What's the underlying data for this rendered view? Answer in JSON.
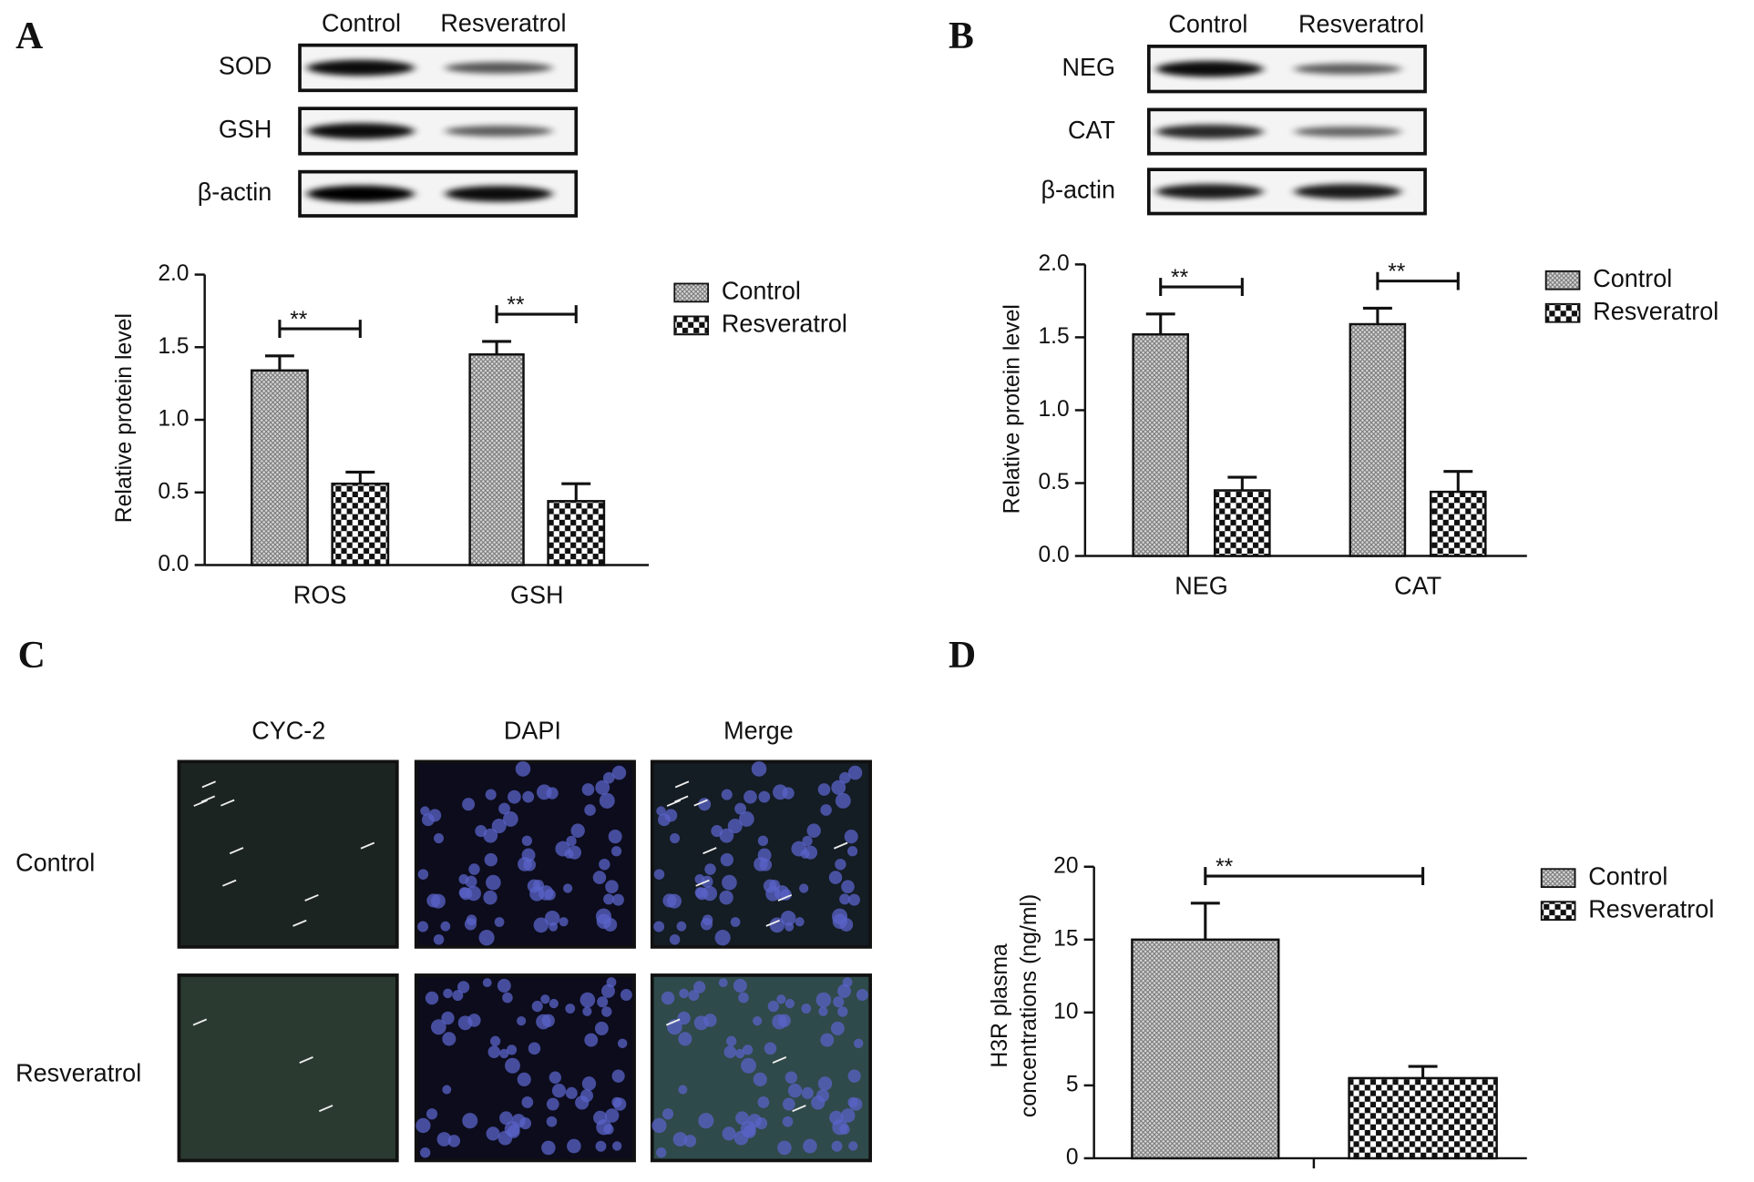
{
  "panel_labels": [
    "A",
    "B",
    "C",
    "D"
  ],
  "blots": [
    {
      "columns": [
        "Control",
        "Resveratrol"
      ],
      "rows": [
        "SOD",
        "GSH",
        "β-actin"
      ]
    },
    {
      "columns": [
        "Control",
        "Resveratrol"
      ],
      "rows": [
        "NEG",
        "CAT",
        "β-actin"
      ]
    }
  ],
  "microscopy": {
    "columns": [
      "CYC-2",
      "DAPI",
      "Merge"
    ],
    "rows": [
      "Control",
      "Resveratrol"
    ]
  },
  "chart_data": [
    {
      "type": "bar",
      "ylabel": "Relative protein level",
      "categories": [
        "ROS",
        "GSH"
      ],
      "series": [
        {
          "name": "Control",
          "color": "#777777",
          "values": [
            1.34,
            1.45
          ],
          "errors": [
            0.1,
            0.09
          ]
        },
        {
          "name": "Resveratrol",
          "color": "#111111",
          "values": [
            0.56,
            0.44
          ],
          "errors": [
            0.08,
            0.12
          ]
        }
      ],
      "ylim": [
        0,
        2
      ],
      "yticks": [
        {
          "value": 0,
          "label": "0.0"
        },
        0.5,
        {
          "value": 1,
          "label": "1.0"
        },
        1.5,
        {
          "value": 2,
          "label": "2.0"
        }
      ],
      "annotations": [
        "**",
        "**"
      ]
    },
    {
      "type": "bar",
      "ylabel": "Relative protein level",
      "categories": [
        "NEG",
        "CAT"
      ],
      "series": [
        {
          "name": "Control",
          "color": "#777777",
          "values": [
            1.52,
            1.59
          ],
          "errors": [
            0.14,
            0.11
          ]
        },
        {
          "name": "Resveratrol",
          "color": "#111111",
          "values": [
            0.45,
            0.44
          ],
          "errors": [
            0.09,
            0.14
          ]
        }
      ],
      "ylim": [
        0,
        2
      ],
      "yticks": [
        {
          "value": 0,
          "label": "0.0"
        },
        0.5,
        {
          "value": 1,
          "label": "1.0"
        },
        1.5,
        {
          "value": 2,
          "label": "2.0"
        }
      ],
      "annotations": [
        "**",
        "**"
      ]
    },
    {
      "type": "bar",
      "ylabel": [
        "H3R  plasma",
        "concentrations (ng/ml)"
      ],
      "categories": [
        null
      ],
      "series": [
        {
          "name": "Control",
          "color": "#777777",
          "values": [
            15.0
          ],
          "errors": [
            2.5
          ]
        },
        {
          "name": "Resveratrol",
          "color": "#111111",
          "values": [
            5.5
          ],
          "errors": [
            0.8
          ]
        }
      ],
      "ylim": [
        0,
        20
      ],
      "yticks": [
        0,
        5,
        10,
        15,
        20
      ],
      "annotations": [
        "**"
      ]
    }
  ]
}
